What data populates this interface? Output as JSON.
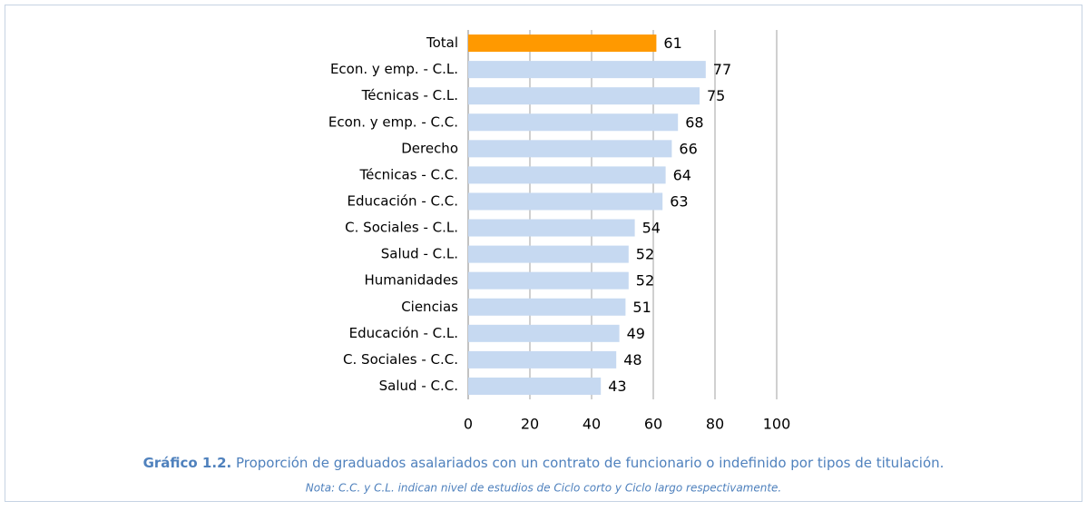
{
  "chart_data": {
    "type": "barh",
    "categories": [
      "Total",
      "Econ. y emp. - C.L.",
      "Técnicas - C.L.",
      "Econ. y emp. - C.C.",
      "Derecho",
      "Técnicas - C.C.",
      "Educación - C.C.",
      "C. Sociales - C.L.",
      "Salud - C.L.",
      "Humanidades",
      "Ciencias",
      "Educación - C.L.",
      "C. Sociales - C.C.",
      "Salud - C.C."
    ],
    "values": [
      61,
      77,
      75,
      68,
      66,
      64,
      63,
      54,
      52,
      52,
      51,
      49,
      48,
      43
    ],
    "colors": [
      "#ff9900",
      "#c6d9f1",
      "#c6d9f1",
      "#c6d9f1",
      "#c6d9f1",
      "#c6d9f1",
      "#c6d9f1",
      "#c6d9f1",
      "#c6d9f1",
      "#c6d9f1",
      "#c6d9f1",
      "#c6d9f1",
      "#c6d9f1",
      "#c6d9f1"
    ],
    "xlim": [
      0,
      100
    ],
    "xticks": [
      0,
      20,
      40,
      60,
      80,
      100
    ],
    "grid": true,
    "caption_label": "Gráfico 1.2.",
    "caption": "Proporción de graduados asalariados con un contrato de funcionario o indefinido por tipos de titulación.",
    "note": "Nota: C.C. y C.L. indican nivel de estudios de Ciclo corto y Ciclo largo respectivamente."
  }
}
